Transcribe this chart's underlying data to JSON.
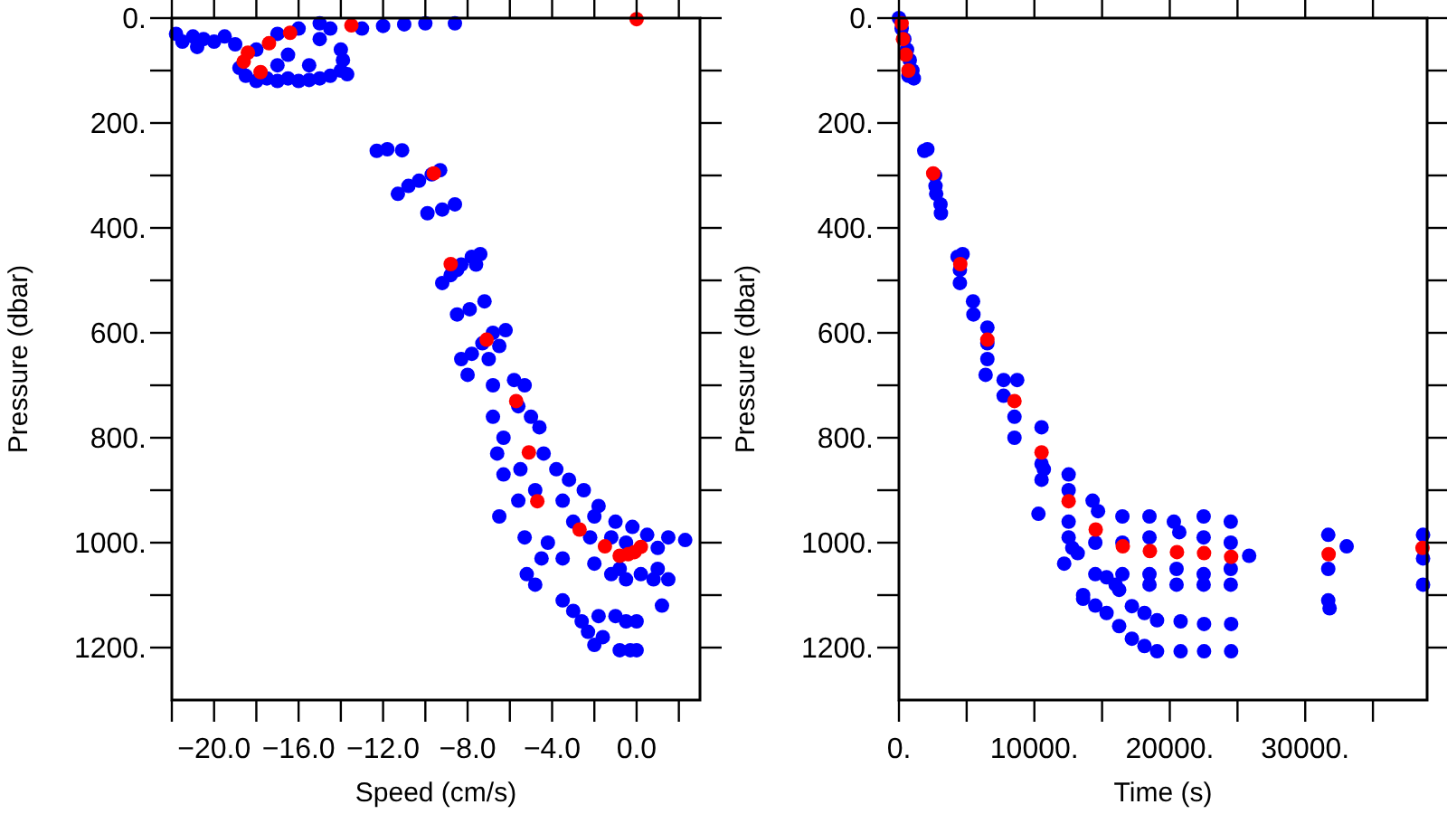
{
  "chart_data": [
    {
      "type": "scatter",
      "xlabel": "Speed (cm/s)",
      "ylabel": "Pressure (dbar)",
      "xlim": [
        -22,
        3
      ],
      "ylim": [
        1300,
        0
      ],
      "marker": "circle",
      "grid": false,
      "xticks": [
        {
          "value": -22,
          "label": null
        },
        {
          "value": -20,
          "label": "−20.0"
        },
        {
          "value": -18,
          "label": null
        },
        {
          "value": -16,
          "label": "−16.0"
        },
        {
          "value": -14,
          "label": null
        },
        {
          "value": -12,
          "label": "−12.0"
        },
        {
          "value": -10,
          "label": null
        },
        {
          "value": -8,
          "label": "−8.0"
        },
        {
          "value": -6,
          "label": null
        },
        {
          "value": -4,
          "label": "−4.0"
        },
        {
          "value": -2,
          "label": null
        },
        {
          "value": 0,
          "label": "0.0"
        },
        {
          "value": 2,
          "label": null
        }
      ],
      "yticks": [
        {
          "value": 0,
          "label": "0."
        },
        {
          "value": 100,
          "label": null
        },
        {
          "value": 200,
          "label": "200."
        },
        {
          "value": 300,
          "label": null
        },
        {
          "value": 400,
          "label": "400."
        },
        {
          "value": 500,
          "label": null
        },
        {
          "value": 600,
          "label": "600."
        },
        {
          "value": 700,
          "label": null
        },
        {
          "value": 800,
          "label": "800."
        },
        {
          "value": 900,
          "label": null
        },
        {
          "value": 1000,
          "label": "1000."
        },
        {
          "value": 1100,
          "label": null
        },
        {
          "value": 1200,
          "label": "1200."
        }
      ],
      "series": [
        {
          "color": "#0000ff",
          "x": [
            -21.8,
            -21,
            -20.5,
            -20,
            -19.5,
            -19,
            -18.8,
            -18.5,
            -18,
            -17.5,
            -17,
            -16.5,
            -16,
            -15.5,
            -15,
            -14.5,
            -14,
            -13.9,
            -14,
            -15,
            -16,
            -17,
            -18,
            -16.5,
            -15.5,
            -17,
            -15,
            -14.5,
            -13,
            -12,
            -11,
            -10,
            -8.6,
            -13.7,
            -20.8,
            -21.5,
            -12.3,
            -11.8,
            -11.1,
            -11.3,
            -10.8,
            -10.3,
            -9.7,
            -9.3,
            -9.9,
            -9.2,
            -8.6,
            -9.2,
            -8.8,
            -8.3,
            -7.8,
            -7.4,
            -8.5,
            -7.6,
            -8.5,
            -7.9,
            -7.2,
            -8.3,
            -7.8,
            -7.3,
            -6.8,
            -6.2,
            -7,
            -6.5,
            -8,
            -6.8,
            -5.8,
            -5.3,
            -6.8,
            -6.3,
            -5.6,
            -5,
            -4.6,
            -6.6,
            -5.5,
            -4.4,
            -3.8,
            -3.2,
            -4.8,
            -3.5,
            -2.5,
            -1.8,
            -5.6,
            -6.5,
            -3,
            -2,
            -1,
            -0.2,
            0.5,
            1.5,
            2.3,
            1,
            -0.5,
            -1.2,
            -2.2,
            -4.2,
            -4.5,
            -3.5,
            -5.2,
            -4.8,
            -2,
            -1.2,
            -0.5,
            0.2,
            0.8,
            1.5,
            1,
            -0.8,
            -3.5,
            -3,
            -2.6,
            -2.3,
            -1.8,
            -1,
            -0.5,
            0,
            1.2,
            -1.6,
            -2,
            -0.8,
            -0.3,
            0,
            -5.3,
            -6.3
          ],
          "values": [
            30,
            35,
            40,
            45,
            35,
            50,
            95,
            110,
            120,
            115,
            120,
            115,
            120,
            118,
            115,
            110,
            100,
            80,
            60,
            40,
            20,
            30,
            60,
            70,
            90,
            90,
            10,
            20,
            20,
            15,
            12,
            10,
            10,
            107,
            55,
            45,
            253,
            250,
            252,
            335,
            320,
            310,
            298,
            290,
            372,
            365,
            355,
            505,
            490,
            470,
            455,
            450,
            480,
            470,
            565,
            555,
            540,
            650,
            640,
            620,
            600,
            595,
            650,
            625,
            680,
            700,
            690,
            700,
            760,
            800,
            740,
            760,
            780,
            830,
            860,
            830,
            860,
            880,
            900,
            920,
            900,
            930,
            920,
            950,
            960,
            950,
            960,
            970,
            985,
            990,
            995,
            1010,
            1000,
            990,
            990,
            1000,
            1030,
            1030,
            1060,
            1080,
            1040,
            1060,
            1070,
            1060,
            1070,
            1070,
            1050,
            1050,
            1110,
            1130,
            1150,
            1170,
            1140,
            1140,
            1150,
            1150,
            1120,
            1180,
            1195,
            1205,
            1205,
            1205,
            990,
            870
          ]
        },
        {
          "color": "#ff0000",
          "x": [
            0,
            -13.5,
            -16.4,
            -17.4,
            -18.4,
            -18.6,
            -17.8,
            -9.6,
            -8.8,
            -7.1,
            -5.7,
            -5.1,
            -4.7,
            -2.7,
            -1.5,
            -0.8,
            -0.4,
            -0.1,
            0.2
          ],
          "values": [
            2,
            14,
            28,
            48,
            66,
            83,
            103,
            296,
            469,
            613,
            730,
            828,
            921,
            975,
            1007,
            1025,
            1022,
            1018,
            1008
          ]
        }
      ]
    },
    {
      "type": "scatter",
      "xlabel": "Time (s)",
      "ylabel": "Pressure (dbar)",
      "xlim": [
        0,
        39000
      ],
      "ylim": [
        1300,
        0
      ],
      "marker": "circle",
      "grid": false,
      "xticks": [
        {
          "value": 0,
          "label": "0."
        },
        {
          "value": 5000,
          "label": null
        },
        {
          "value": 10000,
          "label": "10000."
        },
        {
          "value": 15000,
          "label": null
        },
        {
          "value": 20000,
          "label": "20000."
        },
        {
          "value": 25000,
          "label": null
        },
        {
          "value": 30000,
          "label": "30000."
        },
        {
          "value": 35000,
          "label": null
        }
      ],
      "yticks": [
        {
          "value": 0,
          "label": "0."
        },
        {
          "value": 100,
          "label": null
        },
        {
          "value": 200,
          "label": "200."
        },
        {
          "value": 300,
          "label": null
        },
        {
          "value": 400,
          "label": "400."
        },
        {
          "value": 500,
          "label": null
        },
        {
          "value": 600,
          "label": "600."
        },
        {
          "value": 700,
          "label": null
        },
        {
          "value": 800,
          "label": "800."
        },
        {
          "value": 900,
          "label": null
        },
        {
          "value": 1000,
          "label": "1000."
        },
        {
          "value": 1100,
          "label": null
        },
        {
          "value": 1200,
          "label": "1200."
        }
      ],
      "series": [
        {
          "color": "#0000ff",
          "x": [
            0,
            200,
            400,
            600,
            800,
            1000,
            1100,
            700,
            1870,
            2100,
            2670,
            2700,
            2750,
            3070,
            3100,
            4330,
            4700,
            4500,
            4500,
            5470,
            5500,
            6530,
            6530,
            6530,
            6400,
            7730,
            8730,
            8530,
            8530,
            7730,
            10530,
            10530,
            10530,
            10300,
            10700,
            12530,
            12530,
            12530,
            12530,
            12200,
            12800,
            14300,
            14700,
            14500,
            14500,
            13600,
            13200,
            16500,
            16500,
            16500,
            16000,
            18500,
            18500,
            18500,
            18500,
            20300,
            20700,
            20500,
            20500,
            22500,
            22500,
            22500,
            22500,
            24500,
            24500,
            24500,
            24500,
            13600,
            14500,
            15330,
            16260,
            17200,
            18130,
            19060,
            20800,
            22530,
            24530,
            15330,
            16260,
            17200,
            18130,
            19060,
            20800,
            22530,
            24530,
            25860,
            31700,
            31700,
            31700,
            31800,
            33060,
            38700,
            38700,
            38700
          ],
          "values": [
            0,
            20,
            40,
            60,
            80,
            100,
            115,
            110,
            253,
            250,
            300,
            320,
            335,
            355,
            372,
            455,
            450,
            480,
            505,
            540,
            565,
            590,
            620,
            650,
            680,
            690,
            690,
            760,
            800,
            720,
            780,
            850,
            880,
            945,
            860,
            870,
            900,
            960,
            990,
            1040,
            1010,
            920,
            940,
            1000,
            1060,
            1100,
            1020,
            950,
            1000,
            1060,
            1080,
            950,
            990,
            1060,
            1080,
            960,
            980,
            1050,
            1080,
            950,
            990,
            1060,
            1080,
            960,
            1000,
            1050,
            1080,
            1107,
            1120,
            1134,
            1159,
            1183,
            1197,
            1207,
            1207,
            1207,
            1207,
            1066,
            1090,
            1121,
            1134,
            1148,
            1150,
            1155,
            1155,
            1025,
            985,
            1050,
            1110,
            1125,
            1007,
            985,
            1030,
            1080
          ]
        },
        {
          "color": "#ff0000",
          "x": [
            200,
            300,
            500,
            700,
            2530,
            4530,
            6530,
            8530,
            10530,
            12530,
            14530,
            16530,
            18530,
            20530,
            22530,
            24530,
            31730,
            38660
          ],
          "values": [
            10,
            40,
            70,
            100,
            296,
            469,
            613,
            730,
            828,
            921,
            975,
            1007,
            1016,
            1018,
            1020,
            1027,
            1022,
            1010
          ]
        }
      ]
    }
  ]
}
